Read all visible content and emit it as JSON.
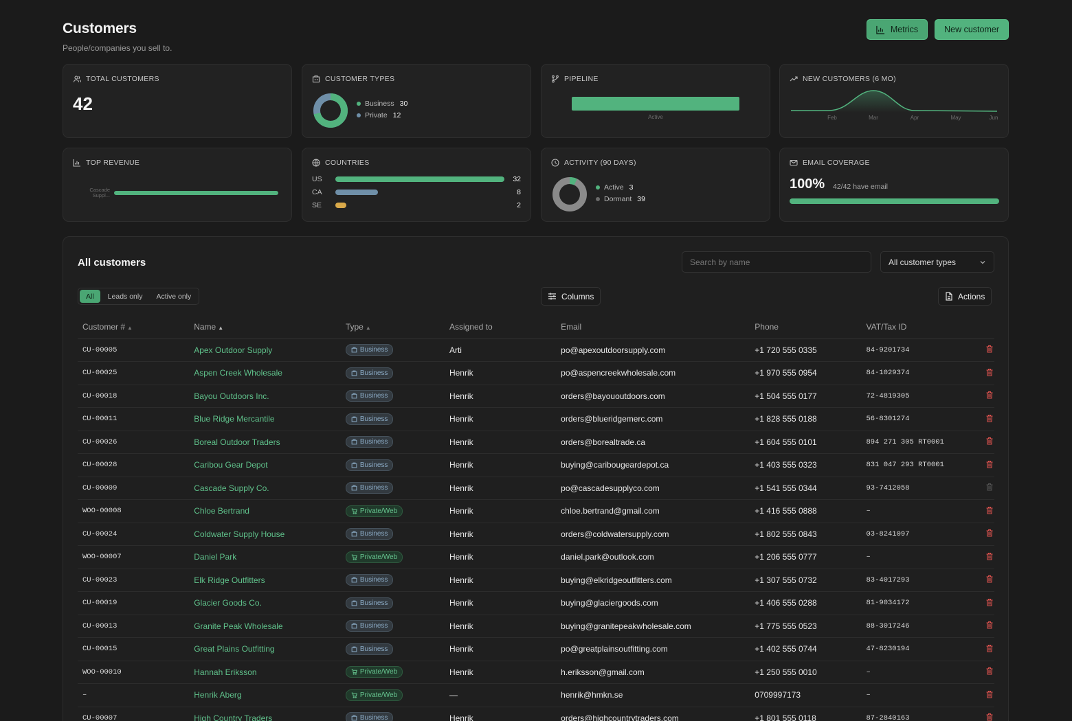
{
  "header": {
    "title": "Customers",
    "subtitle": "People/companies you sell to.",
    "metrics_label": "Metrics",
    "new_customer_label": "New customer"
  },
  "cards": {
    "total": {
      "title": "TOTAL CUSTOMERS",
      "value": "42"
    },
    "types": {
      "title": "CUSTOMER TYPES",
      "items": [
        {
          "label": "Business",
          "count": "30",
          "color": "#52b37e"
        },
        {
          "label": "Private",
          "count": "12",
          "color": "#6f8fa8"
        }
      ]
    },
    "pipeline": {
      "title": "PIPELINE",
      "bar_label": "Active",
      "fill_fraction": 1.0,
      "color": "#52b37e"
    },
    "new_customers": {
      "title": "NEW CUSTOMERS (6 MO)",
      "months": [
        "Feb",
        "Mar",
        "Apr",
        "May",
        "Jun"
      ]
    },
    "top_revenue": {
      "title": "TOP REVENUE",
      "bar_label": "Cascade Suppl...",
      "fill_fraction": 1.0
    },
    "countries": {
      "title": "COUNTRIES",
      "rows": [
        {
          "code": "US",
          "count": "32",
          "fraction": 1.0,
          "color": "#52b37e"
        },
        {
          "code": "CA",
          "count": "8",
          "fraction": 0.25,
          "color": "#6f8fa8"
        },
        {
          "code": "SE",
          "count": "2",
          "fraction": 0.0625,
          "color": "#d9a94a"
        }
      ]
    },
    "activity": {
      "title": "ACTIVITY (90 DAYS)",
      "items": [
        {
          "label": "Active",
          "count": "3",
          "color": "#52b37e"
        },
        {
          "label": "Dormant",
          "count": "39",
          "color": "#6a6a6a"
        }
      ]
    },
    "email": {
      "title": "EMAIL COVERAGE",
      "percent": "100%",
      "detail": "42/42 have email",
      "fill_fraction": 1.0
    }
  },
  "panel": {
    "title": "All customers",
    "search_placeholder": "Search by name",
    "type_filter": "All customer types",
    "segments": [
      "All",
      "Leads only",
      "Active only"
    ],
    "columns_label": "Columns",
    "actions_label": "Actions",
    "headers": [
      "Customer #",
      "Name",
      "Type",
      "Assigned to",
      "Email",
      "Phone",
      "VAT/Tax ID"
    ],
    "rows": [
      {
        "id": "CU-00005",
        "name": "Apex Outdoor Supply",
        "type": "Business",
        "assigned": "Arti",
        "email": "po@apexoutdoorsupply.com",
        "phone": "+1 720 555 0335",
        "vat": "84-9201734",
        "delete_enabled": true
      },
      {
        "id": "CU-00025",
        "name": "Aspen Creek Wholesale",
        "type": "Business",
        "assigned": "Henrik",
        "email": "po@aspencreekwholesale.com",
        "phone": "+1 970 555 0954",
        "vat": "84-1029374",
        "delete_enabled": true
      },
      {
        "id": "CU-00018",
        "name": "Bayou Outdoors Inc.",
        "type": "Business",
        "assigned": "Henrik",
        "email": "orders@bayououtdoors.com",
        "phone": "+1 504 555 0177",
        "vat": "72-4819305",
        "delete_enabled": true
      },
      {
        "id": "CU-00011",
        "name": "Blue Ridge Mercantile",
        "type": "Business",
        "assigned": "Henrik",
        "email": "orders@blueridgemerc.com",
        "phone": "+1 828 555 0188",
        "vat": "56-8301274",
        "delete_enabled": true
      },
      {
        "id": "CU-00026",
        "name": "Boreal Outdoor Traders",
        "type": "Business",
        "assigned": "Henrik",
        "email": "orders@borealtrade.ca",
        "phone": "+1 604 555 0101",
        "vat": "894 271 305 RT0001",
        "delete_enabled": true
      },
      {
        "id": "CU-00028",
        "name": "Caribou Gear Depot",
        "type": "Business",
        "assigned": "Henrik",
        "email": "buying@caribougeardepot.ca",
        "phone": "+1 403 555 0323",
        "vat": "831 047 293 RT0001",
        "delete_enabled": true
      },
      {
        "id": "CU-00009",
        "name": "Cascade Supply Co.",
        "type": "Business",
        "assigned": "Henrik",
        "email": "po@cascadesupplyco.com",
        "phone": "+1 541 555 0344",
        "vat": "93-7412058",
        "delete_enabled": false
      },
      {
        "id": "WOO-00008",
        "name": "Chloe Bertrand",
        "type": "Private/Web",
        "assigned": "Henrik",
        "email": "chloe.bertrand@gmail.com",
        "phone": "+1 416 555 0888",
        "vat": "–",
        "delete_enabled": true
      },
      {
        "id": "CU-00024",
        "name": "Coldwater Supply House",
        "type": "Business",
        "assigned": "Henrik",
        "email": "orders@coldwatersupply.com",
        "phone": "+1 802 555 0843",
        "vat": "03-8241097",
        "delete_enabled": true
      },
      {
        "id": "WOO-00007",
        "name": "Daniel Park",
        "type": "Private/Web",
        "assigned": "Henrik",
        "email": "daniel.park@outlook.com",
        "phone": "+1 206 555 0777",
        "vat": "–",
        "delete_enabled": true
      },
      {
        "id": "CU-00023",
        "name": "Elk Ridge Outfitters",
        "type": "Business",
        "assigned": "Henrik",
        "email": "buying@elkridgeoutfitters.com",
        "phone": "+1 307 555 0732",
        "vat": "83-4017293",
        "delete_enabled": true
      },
      {
        "id": "CU-00019",
        "name": "Glacier Goods Co.",
        "type": "Business",
        "assigned": "Henrik",
        "email": "buying@glaciergoods.com",
        "phone": "+1 406 555 0288",
        "vat": "81-9034172",
        "delete_enabled": true
      },
      {
        "id": "CU-00013",
        "name": "Granite Peak Wholesale",
        "type": "Business",
        "assigned": "Henrik",
        "email": "buying@granitepeakwholesale.com",
        "phone": "+1 775 555 0523",
        "vat": "88-3017246",
        "delete_enabled": true
      },
      {
        "id": "CU-00015",
        "name": "Great Plains Outfitting",
        "type": "Business",
        "assigned": "Henrik",
        "email": "po@greatplainsoutfitting.com",
        "phone": "+1 402 555 0744",
        "vat": "47-8230194",
        "delete_enabled": true
      },
      {
        "id": "WOO-00010",
        "name": "Hannah Eriksson",
        "type": "Private/Web",
        "assigned": "Henrik",
        "email": "h.eriksson@gmail.com",
        "phone": "+1 250 555 0010",
        "vat": "–",
        "delete_enabled": true
      },
      {
        "id": "–",
        "name": "Henrik Aberg",
        "type": "Private/Web",
        "assigned": "—",
        "email": "henrik@hmkn.se",
        "phone": "0709997173",
        "vat": "–",
        "delete_enabled": true
      },
      {
        "id": "CU-00007",
        "name": "High Country Traders",
        "type": "Business",
        "assigned": "Henrik",
        "email": "orders@highcountrytraders.com",
        "phone": "+1 801 555 0118",
        "vat": "87-2840163",
        "delete_enabled": true
      }
    ]
  },
  "colors": {
    "accent": "#52b37e",
    "danger": "#e0534f",
    "business": "#8aa9c3",
    "private": "#66c48f"
  }
}
